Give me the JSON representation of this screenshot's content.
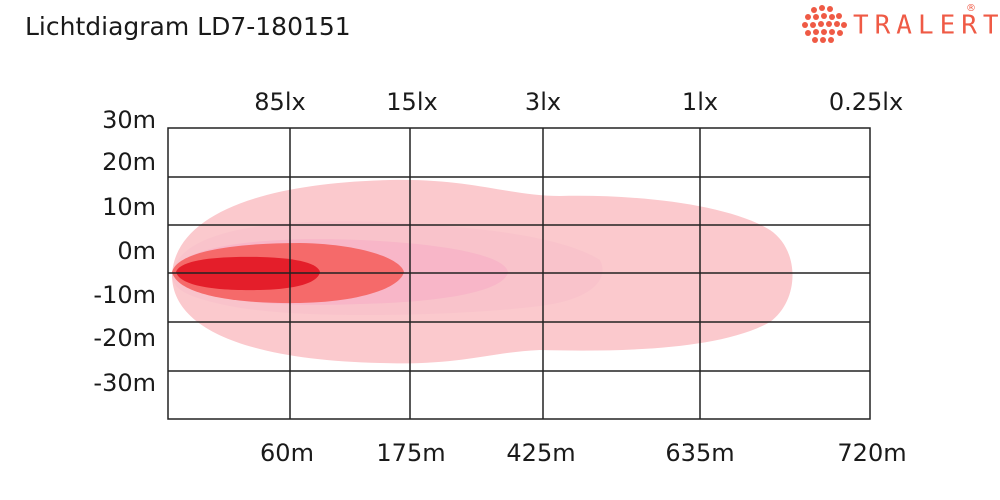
{
  "title": "Lichtdiagram LD7-180151",
  "logo": {
    "text": "TRALERT",
    "mark": "®"
  },
  "lux_labels": [
    "85lx",
    "15lx",
    "3lx",
    "1lx",
    "0.25lx"
  ],
  "y_labels": [
    "30m",
    "20m",
    "10m",
    "0m",
    "-10m",
    "-20m",
    "-30m"
  ],
  "distance_labels": [
    "60m",
    "175m",
    "425m",
    "635m",
    "720m"
  ]
}
